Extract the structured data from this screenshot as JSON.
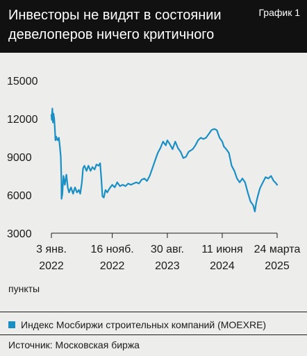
{
  "header": {
    "title": "Инвесторы не видят в состоянии девелоперов ничего критичного",
    "label": "График 1"
  },
  "unit_label": "пункты",
  "source": "Источник: Московская биржа",
  "colors": {
    "series": "#1a8fc4",
    "header_bg": "#111111",
    "page_bg": "#ededeb"
  },
  "chart_data": {
    "type": "line",
    "title": "",
    "ylabel": "пункты",
    "ylim": [
      3000,
      15000
    ],
    "yticks": [
      3000,
      6000,
      9000,
      12000,
      15000
    ],
    "ytick_labels": [
      "3000",
      "6000",
      "9000",
      "12000",
      "15000"
    ],
    "grid": false,
    "legend": "bottom-left",
    "xlim": [
      "2022-01-03",
      "2025-03-24"
    ],
    "xticks": [
      {
        "date": "2022-01-03",
        "line1": "3 янв.",
        "line2": "2022"
      },
      {
        "date": "2022-11-16",
        "line1": "16 нояб.",
        "line2": "2022"
      },
      {
        "date": "2023-08-30",
        "line1": "30 авг.",
        "line2": "2023"
      },
      {
        "date": "2024-06-11",
        "line1": "11 июня",
        "line2": "2024"
      },
      {
        "date": "2025-03-24",
        "line1": "24 марта",
        "line2": "2025"
      }
    ],
    "series": [
      {
        "name": "Индекс Мосбиржи строительных компаний (MOEXRE)",
        "points": [
          [
            "2022-01-03",
            12300
          ],
          [
            "2022-01-05",
            11900
          ],
          [
            "2022-01-08",
            12800
          ],
          [
            "2022-01-11",
            11700
          ],
          [
            "2022-01-14",
            12400
          ],
          [
            "2022-01-18",
            12000
          ],
          [
            "2022-01-21",
            11200
          ],
          [
            "2022-01-24",
            10300
          ],
          [
            "2022-01-28",
            10600
          ],
          [
            "2022-02-04",
            10300
          ],
          [
            "2022-02-11",
            10500
          ],
          [
            "2022-02-16",
            9800
          ],
          [
            "2022-02-21",
            9000
          ],
          [
            "2022-02-24",
            7200
          ],
          [
            "2022-02-25",
            5700
          ],
          [
            "2022-03-01",
            6100
          ],
          [
            "2022-03-07",
            7500
          ],
          [
            "2022-03-14",
            6800
          ],
          [
            "2022-03-22",
            7600
          ],
          [
            "2022-03-29",
            6600
          ],
          [
            "2022-04-05",
            6200
          ],
          [
            "2022-04-15",
            6600
          ],
          [
            "2022-04-26",
            6100
          ],
          [
            "2022-05-06",
            6600
          ],
          [
            "2022-05-16",
            6200
          ],
          [
            "2022-05-26",
            6400
          ],
          [
            "2022-06-02",
            6100
          ],
          [
            "2022-06-10",
            6900
          ],
          [
            "2022-06-17",
            8100
          ],
          [
            "2022-06-24",
            8300
          ],
          [
            "2022-07-05",
            7900
          ],
          [
            "2022-07-15",
            8300
          ],
          [
            "2022-07-26",
            7900
          ],
          [
            "2022-08-05",
            8200
          ],
          [
            "2022-08-16",
            8000
          ],
          [
            "2022-08-26",
            8400
          ],
          [
            "2022-09-06",
            8300
          ],
          [
            "2022-09-14",
            8500
          ],
          [
            "2022-09-21",
            7100
          ],
          [
            "2022-09-26",
            5900
          ],
          [
            "2022-10-03",
            5800
          ],
          [
            "2022-10-12",
            6400
          ],
          [
            "2022-10-21",
            6200
          ],
          [
            "2022-11-01",
            6500
          ],
          [
            "2022-11-16",
            6800
          ],
          [
            "2022-11-29",
            6600
          ],
          [
            "2022-12-12",
            7000
          ],
          [
            "2022-12-26",
            6700
          ],
          [
            "2023-01-10",
            6800
          ],
          [
            "2023-01-24",
            6700
          ],
          [
            "2023-02-07",
            6900
          ],
          [
            "2023-02-21",
            6800
          ],
          [
            "2023-03-07",
            6900
          ],
          [
            "2023-03-21",
            7000
          ],
          [
            "2023-04-04",
            6900
          ],
          [
            "2023-04-18",
            7200
          ],
          [
            "2023-05-02",
            7300
          ],
          [
            "2023-05-16",
            7100
          ],
          [
            "2023-05-30",
            7500
          ],
          [
            "2023-06-13",
            8100
          ],
          [
            "2023-06-27",
            8700
          ],
          [
            "2023-07-11",
            9300
          ],
          [
            "2023-07-25",
            9700
          ],
          [
            "2023-08-08",
            10200
          ],
          [
            "2023-08-22",
            9900
          ],
          [
            "2023-08-30",
            10300
          ],
          [
            "2023-09-12",
            10000
          ],
          [
            "2023-09-26",
            9600
          ],
          [
            "2023-10-10",
            10200
          ],
          [
            "2023-10-24",
            9700
          ],
          [
            "2023-11-07",
            9400
          ],
          [
            "2023-11-21",
            8900
          ],
          [
            "2023-12-05",
            9000
          ],
          [
            "2023-12-19",
            9400
          ],
          [
            "2024-01-09",
            9600
          ],
          [
            "2024-01-23",
            9900
          ],
          [
            "2024-02-06",
            10300
          ],
          [
            "2024-02-20",
            10500
          ],
          [
            "2024-03-05",
            10400
          ],
          [
            "2024-03-19",
            10500
          ],
          [
            "2024-04-02",
            10800
          ],
          [
            "2024-04-16",
            11100
          ],
          [
            "2024-04-30",
            11200
          ],
          [
            "2024-05-14",
            11100
          ],
          [
            "2024-05-28",
            10500
          ],
          [
            "2024-06-11",
            10200
          ],
          [
            "2024-06-20",
            9800
          ],
          [
            "2024-07-02",
            9600
          ],
          [
            "2024-07-16",
            9300
          ],
          [
            "2024-07-30",
            8300
          ],
          [
            "2024-08-13",
            7900
          ],
          [
            "2024-08-27",
            7300
          ],
          [
            "2024-09-10",
            7000
          ],
          [
            "2024-09-24",
            7300
          ],
          [
            "2024-10-08",
            7000
          ],
          [
            "2024-10-22",
            6200
          ],
          [
            "2024-11-05",
            5500
          ],
          [
            "2024-11-19",
            5200
          ],
          [
            "2024-11-28",
            4700
          ],
          [
            "2024-12-05",
            5400
          ],
          [
            "2024-12-13",
            5900
          ],
          [
            "2024-12-24",
            6500
          ],
          [
            "2025-01-09",
            7000
          ],
          [
            "2025-01-23",
            7400
          ],
          [
            "2025-02-06",
            7300
          ],
          [
            "2025-02-20",
            7500
          ],
          [
            "2025-03-06",
            7100
          ],
          [
            "2025-03-14",
            7000
          ],
          [
            "2025-03-24",
            6800
          ]
        ]
      }
    ]
  }
}
